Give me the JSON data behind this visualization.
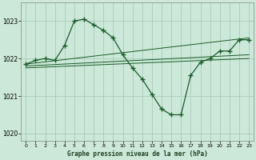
{
  "title": "Graphe pression niveau de la mer (hPa)",
  "bg_color": "#cce8d8",
  "grid_color": "#aaccbb",
  "line_color": "#1a5c2a",
  "xlim": [
    -0.5,
    23.5
  ],
  "ylim": [
    1019.8,
    1023.5
  ],
  "yticks": [
    1020,
    1021,
    1022,
    1023
  ],
  "xtick_labels": [
    "0",
    "1",
    "2",
    "3",
    "4",
    "5",
    "6",
    "7",
    "8",
    "9",
    "10",
    "11",
    "12",
    "13",
    "14",
    "15",
    "16",
    "17",
    "18",
    "19",
    "20",
    "21",
    "22",
    "23"
  ],
  "series_main": {
    "x": [
      0,
      1,
      2,
      3,
      4,
      5,
      6,
      7,
      8,
      9,
      10,
      11,
      12,
      13,
      14,
      15,
      16,
      17,
      18,
      19,
      20,
      21,
      22,
      23
    ],
    "y": [
      1021.85,
      1021.95,
      1022.0,
      1021.95,
      1022.35,
      1023.0,
      1023.05,
      1022.9,
      1022.75,
      1022.55,
      1022.1,
      1021.75,
      1021.45,
      1021.05,
      1020.65,
      1020.5,
      1020.5,
      1021.55,
      1021.9,
      1022.0,
      1022.2,
      1022.2,
      1022.5,
      1022.5
    ]
  },
  "series_upper": {
    "x": [
      0,
      23
    ],
    "y": [
      1021.85,
      1022.55
    ]
  },
  "series_mid1": {
    "x": [
      0,
      23
    ],
    "y": [
      1021.8,
      1022.1
    ]
  },
  "series_mid2": {
    "x": [
      0,
      23
    ],
    "y": [
      1021.75,
      1022.0
    ]
  }
}
